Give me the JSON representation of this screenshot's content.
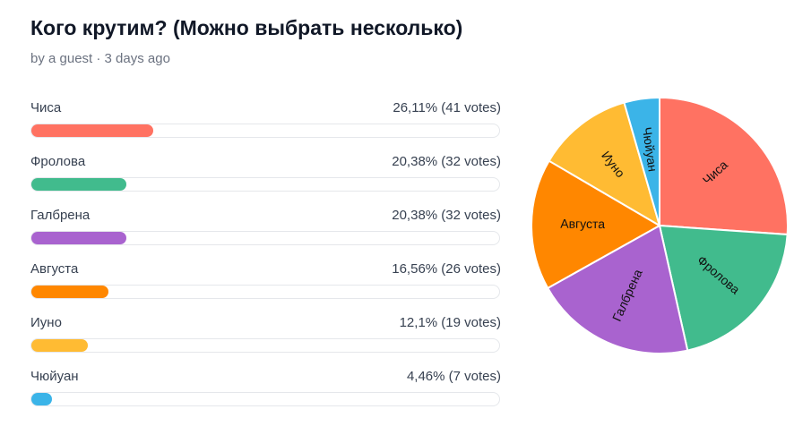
{
  "header": {
    "title": "Кого крутим? (Можно выбрать несколько)",
    "byline": "by a guest · 3 days ago"
  },
  "chart_data": [
    {
      "type": "bar",
      "categories": [
        "Чиса",
        "Фролова",
        "Галбрена",
        "Августа",
        "Иуно",
        "Чюйуан"
      ],
      "values": [
        26.11,
        20.38,
        20.38,
        16.56,
        12.1,
        4.46
      ],
      "value_labels": [
        "26,11% (41 votes)",
        "20,38% (32 votes)",
        "20,38% (32 votes)",
        "16,56% (26 votes)",
        "12,1% (19 votes)",
        "4,46% (7 votes)"
      ],
      "colors": [
        "#ff7262",
        "#41bb8d",
        "#a963cf",
        "#ff8700",
        "#ffbb33",
        "#3bb4e8"
      ],
      "xlim": [
        0,
        100
      ]
    },
    {
      "type": "pie",
      "categories": [
        "Чиса",
        "Фролова",
        "Галбрена",
        "Августа",
        "Иуно",
        "Чюйуан"
      ],
      "values": [
        26.11,
        20.38,
        20.38,
        16.56,
        12.1,
        4.46
      ],
      "colors": [
        "#ff7262",
        "#41bb8d",
        "#a963cf",
        "#ff8700",
        "#ffbb33",
        "#3bb4e8"
      ]
    }
  ]
}
